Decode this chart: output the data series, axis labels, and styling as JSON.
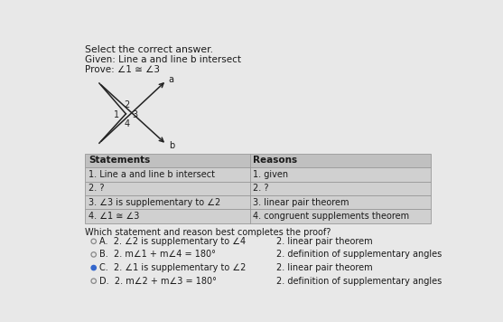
{
  "bg_color": "#e8e8e8",
  "title": "Select the correct answer.",
  "given": "Given: Line a and line b intersect",
  "prove": "Prove: ∠1 ≅ ∠3",
  "table_headers": [
    "Statements",
    "Reasons"
  ],
  "table_rows": [
    [
      "1. Line a and line b intersect",
      "1. given"
    ],
    [
      "2. ?",
      "2. ?"
    ],
    [
      "3. ∠3 is supplementary to ∠2",
      "3. linear pair theorem"
    ],
    [
      "4. ∠1 ≅ ∠3",
      "4. congruent supplements theorem"
    ]
  ],
  "question": "Which statement and reason best completes the proof?",
  "options": [
    {
      "label": "A.",
      "num": "2.",
      "statement": "∠2 is supplementary to ∠4",
      "reason": "2. linear pair theorem",
      "selected": false
    },
    {
      "label": "B.",
      "num": "2.",
      "statement": "m∠1 + m∠4 = 180°",
      "reason": "2. definition of supplementary angles",
      "selected": false
    },
    {
      "label": "C.",
      "num": "2.",
      "statement": "∠1 is supplementary to ∠2",
      "reason": "2. linear pair theorem",
      "selected": true
    },
    {
      "label": "D.",
      "num": "2.",
      "statement": "m∠2 + m∠3 = 180°",
      "reason": "2. definition of supplementary angles",
      "selected": false
    }
  ],
  "text_color": "#1a1a1a",
  "table_header_color": "#c0c0c0",
  "table_row_color": "#d0d0d0",
  "table_border_color": "#999999",
  "selected_dot_color": "#3366cc",
  "unselected_dot_color": "#888888",
  "diagram_line_color": "#222222",
  "angle_label_color": "#222222"
}
